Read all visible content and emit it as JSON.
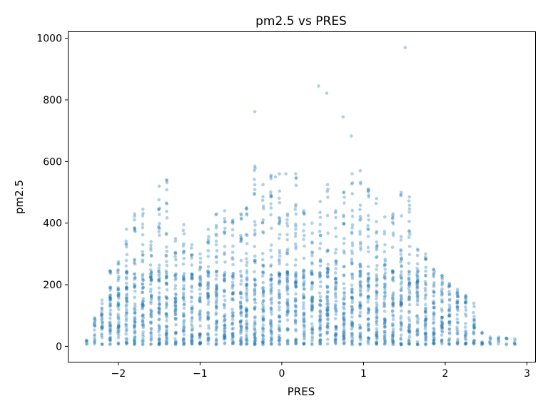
{
  "chart_data": {
    "type": "scatter",
    "title": "pm2.5 vs PRES",
    "xlabel": "PRES",
    "ylabel": "pm2.5",
    "xlim": [
      -2.61,
      3.1
    ],
    "ylim": [
      -50,
      1020
    ],
    "xticks": [
      -2,
      -1,
      0,
      1,
      2,
      3
    ],
    "xtick_labels": [
      "−2",
      "−1",
      "0",
      "1",
      "2",
      "3"
    ],
    "yticks": [
      0,
      200,
      400,
      600,
      800,
      1000
    ],
    "ytick_labels": [
      "0",
      "200",
      "400",
      "600",
      "800",
      "1000"
    ],
    "grid": false,
    "point_color": "#1f77b4",
    "point_opacity": 0.35,
    "columns": [
      {
        "x": -2.39,
        "max": 20
      },
      {
        "x": -2.29,
        "max": 90
      },
      {
        "x": -2.2,
        "max": 150
      },
      {
        "x": -2.1,
        "max": 245
      },
      {
        "x": -2.0,
        "max": 275
      },
      {
        "x": -1.9,
        "max": 380
      },
      {
        "x": -1.8,
        "max": 430
      },
      {
        "x": -1.7,
        "max": 445
      },
      {
        "x": -1.6,
        "max": 340
      },
      {
        "x": -1.5,
        "max": 520
      },
      {
        "x": -1.41,
        "max": 540
      },
      {
        "x": -1.3,
        "max": 350
      },
      {
        "x": -1.2,
        "max": 395
      },
      {
        "x": -1.1,
        "max": 330
      },
      {
        "x": -1.0,
        "max": 300
      },
      {
        "x": -0.9,
        "max": 380
      },
      {
        "x": -0.8,
        "max": 430
      },
      {
        "x": -0.7,
        "max": 440
      },
      {
        "x": -0.6,
        "max": 410
      },
      {
        "x": -0.5,
        "max": 430
      },
      {
        "x": -0.43,
        "max": 450
      },
      {
        "x": -0.33,
        "max": 585
      },
      {
        "x": -0.23,
        "max": 525
      },
      {
        "x": -0.13,
        "max": 555
      },
      {
        "x": -0.03,
        "max": 560
      },
      {
        "x": 0.07,
        "max": 430
      },
      {
        "x": 0.17,
        "max": 560
      },
      {
        "x": 0.27,
        "max": 440
      },
      {
        "x": 0.37,
        "max": 400
      },
      {
        "x": 0.47,
        "max": 470
      },
      {
        "x": 0.56,
        "max": 525
      },
      {
        "x": 0.66,
        "max": 440
      },
      {
        "x": 0.76,
        "max": 500
      },
      {
        "x": 0.86,
        "max": 560
      },
      {
        "x": 0.96,
        "max": 570
      },
      {
        "x": 1.06,
        "max": 510
      },
      {
        "x": 1.16,
        "max": 480
      },
      {
        "x": 1.26,
        "max": 420
      },
      {
        "x": 1.36,
        "max": 430
      },
      {
        "x": 1.46,
        "max": 500
      },
      {
        "x": 1.56,
        "max": 485
      },
      {
        "x": 1.66,
        "max": 315
      },
      {
        "x": 1.76,
        "max": 300
      },
      {
        "x": 1.86,
        "max": 250
      },
      {
        "x": 1.96,
        "max": 230
      },
      {
        "x": 2.05,
        "max": 200
      },
      {
        "x": 2.15,
        "max": 185
      },
      {
        "x": 2.25,
        "max": 165
      },
      {
        "x": 2.35,
        "max": 140
      },
      {
        "x": 2.45,
        "max": 45
      },
      {
        "x": 2.55,
        "max": 30
      },
      {
        "x": 2.65,
        "max": 25
      },
      {
        "x": 2.75,
        "max": 25
      },
      {
        "x": 2.85,
        "max": 25
      }
    ],
    "outliers": [
      {
        "x": 1.51,
        "y": 970
      },
      {
        "x": 0.45,
        "y": 845
      },
      {
        "x": 0.55,
        "y": 822
      },
      {
        "x": -0.33,
        "y": 762
      },
      {
        "x": 0.75,
        "y": 745
      },
      {
        "x": 0.85,
        "y": 683
      },
      {
        "x": 0.05,
        "y": 560
      },
      {
        "x": -0.08,
        "y": 550
      }
    ]
  }
}
